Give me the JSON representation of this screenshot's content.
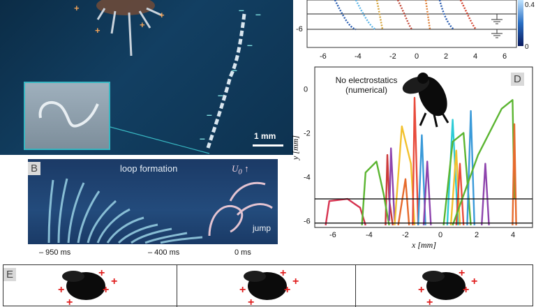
{
  "panel_a": {
    "scale_label": "1 mm"
  },
  "panel_b": {
    "tag": "B",
    "title": "loop formation",
    "u_label": "U",
    "u_sub": "0",
    "jump_label": "jump",
    "times": [
      "– 950 ms",
      "– 400 ms",
      "0 ms"
    ]
  },
  "panel_c": {
    "x_ticks": [
      "-6",
      "-4",
      "-2",
      "0",
      "2",
      "4",
      "6"
    ],
    "y_ticks": [
      "-6"
    ],
    "cbar_ticks": [
      "0.4",
      "0"
    ]
  },
  "panel_d": {
    "tag": "D",
    "note_line1": "No electrostatics",
    "note_line2": "(numerical)",
    "xlabel": "x [mm]",
    "ylabel": "y [mm]",
    "x_ticks": [
      "-6",
      "-4",
      "-2",
      "0",
      "2",
      "4"
    ],
    "y_ticks": [
      "0",
      "-2",
      "-4",
      "-6"
    ]
  },
  "panel_e": {
    "tag": "E"
  },
  "chart_data": [
    {
      "type": "line",
      "xlabel": "x [mm]",
      "ylabel": "y [mm]",
      "xlim": [
        -7,
        5
      ],
      "ylim": [
        -6.3,
        1
      ],
      "hlines": [
        -5,
        -6.1
      ],
      "series": [
        {
          "color": "#d6324f",
          "x": [
            -6.4,
            -6.2,
            -5.2,
            -4.5,
            -4.2
          ],
          "y": [
            -6.2,
            -5.1,
            -5.0,
            -5.4,
            -6.2
          ]
        },
        {
          "color": "#cc3a3a",
          "x": [
            -3.1,
            -3.0,
            -2.9,
            -2.7
          ],
          "y": [
            -6.2,
            -3.0,
            -5.0,
            -6.2
          ]
        },
        {
          "color": "#5bb531",
          "x": [
            -4.4,
            -4.2,
            -3.6,
            -3.2,
            -2.9
          ],
          "y": [
            -6.2,
            -3.8,
            -3.3,
            -4.8,
            -6.2
          ]
        },
        {
          "color": "#8e44ad",
          "x": [
            -2.9,
            -2.8,
            -2.6
          ],
          "y": [
            -6.0,
            -2.7,
            -6.0
          ]
        },
        {
          "color": "#f2c12e",
          "x": [
            -2.6,
            -2.2,
            -1.7,
            -1.5
          ],
          "y": [
            -6.2,
            -1.7,
            -3.4,
            -6.2
          ]
        },
        {
          "color": "#e66a2c",
          "x": [
            -2.4,
            -2.0,
            -1.8
          ],
          "y": [
            -6.2,
            -4.1,
            -6.2
          ]
        },
        {
          "color": "#e84b3c",
          "x": [
            -1.6,
            -1.5,
            -1.3
          ],
          "y": [
            -6.2,
            -0.4,
            -6.2
          ]
        },
        {
          "color": "#3a9ad9",
          "x": [
            -1.3,
            -1.1,
            -0.9
          ],
          "y": [
            -6.2,
            -2.1,
            -6.2
          ]
        },
        {
          "color": "#8e44ad",
          "x": [
            -1.0,
            -0.8,
            -0.6
          ],
          "y": [
            -6.2,
            -3.3,
            -6.2
          ]
        },
        {
          "color": "#2ecbd6",
          "x": [
            0.3,
            0.6,
            0.9
          ],
          "y": [
            -6.2,
            -1.4,
            -6.2
          ]
        },
        {
          "color": "#f2c12e",
          "x": [
            0.5,
            0.8,
            1.0
          ],
          "y": [
            -6.2,
            -2.8,
            -6.2
          ]
        },
        {
          "color": "#e84b3c",
          "x": [
            0.8,
            1.0,
            1.2
          ],
          "y": [
            -6.2,
            -3.4,
            -6.2
          ]
        },
        {
          "color": "#5bb531",
          "x": [
            0.1,
            0.6,
            1.2,
            1.6
          ],
          "y": [
            -6.2,
            -2.4,
            -2.0,
            -6.2
          ]
        },
        {
          "color": "#3a9ad9",
          "x": [
            1.4,
            1.6,
            1.8
          ],
          "y": [
            -6.2,
            -1.0,
            -6.2
          ]
        },
        {
          "color": "#8e44ad",
          "x": [
            2.2,
            2.4,
            2.6
          ],
          "y": [
            -6.2,
            -3.4,
            -6.2
          ]
        },
        {
          "color": "#5bb531",
          "x": [
            0.6,
            2.0,
            3.3,
            3.9,
            4.0
          ],
          "y": [
            -6.2,
            -3.0,
            -0.9,
            -0.5,
            -5.0
          ]
        },
        {
          "color": "#e66a2c",
          "x": [
            3.9,
            4.0,
            4.1
          ],
          "y": [
            -6.2,
            -1.6,
            -6.2
          ]
        }
      ]
    }
  ]
}
